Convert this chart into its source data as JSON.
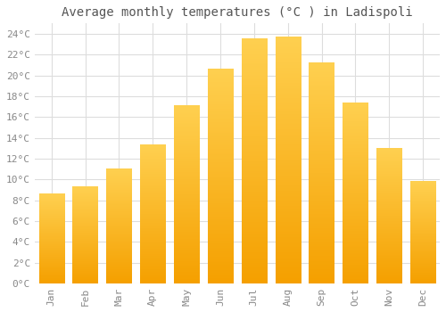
{
  "title": "Average monthly temperatures (°C ) in Ladispoli",
  "months": [
    "Jan",
    "Feb",
    "Mar",
    "Apr",
    "May",
    "Jun",
    "Jul",
    "Aug",
    "Sep",
    "Oct",
    "Nov",
    "Dec"
  ],
  "values": [
    8.6,
    9.3,
    11.0,
    13.3,
    17.1,
    20.6,
    23.5,
    23.7,
    21.2,
    17.4,
    13.0,
    9.8
  ],
  "bar_color_top": "#FFD050",
  "bar_color_bottom": "#F5A000",
  "background_color": "#FFFFFF",
  "grid_color": "#DDDDDD",
  "text_color": "#888888",
  "ylim": [
    0,
    25
  ],
  "ytick_step": 2,
  "title_fontsize": 10,
  "tick_fontsize": 8
}
